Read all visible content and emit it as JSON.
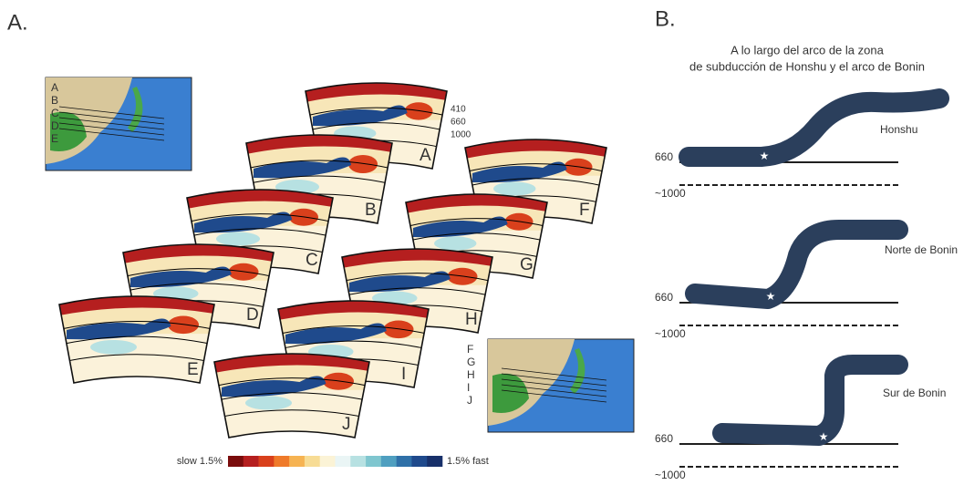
{
  "panel_a": {
    "label": "A.",
    "sections": [
      "A",
      "B",
      "C",
      "D",
      "E",
      "F",
      "G",
      "H",
      "I",
      "J"
    ],
    "depth_labels": [
      "410",
      "660",
      "1000"
    ],
    "map_top": {
      "labels": [
        "A",
        "B",
        "C",
        "D",
        "E"
      ]
    },
    "map_bottom": {
      "labels": [
        "F",
        "G",
        "H",
        "I",
        "J"
      ]
    },
    "colorbar": {
      "left": "slow 1.5%",
      "right": "1.5% fast",
      "colors": [
        "#7a0c0c",
        "#b51f1f",
        "#d9401c",
        "#ef7a2a",
        "#f6b352",
        "#f7dc95",
        "#fbf3d6",
        "#eaf5f5",
        "#b7e1e2",
        "#7fc6cf",
        "#4f9fc0",
        "#2f70a8",
        "#1f4a8c",
        "#18306a"
      ]
    }
  },
  "panel_b": {
    "label": "B.",
    "title": [
      "A lo largo del arco de la zona",
      "de subducción de Honshu y el arco de Bonin"
    ],
    "profiles": [
      {
        "name": "Honshu",
        "depth_660": "660",
        "depth_1000": "~1000"
      },
      {
        "name": "Norte de Bonin",
        "depth_660": "660",
        "depth_1000": "~1000"
      },
      {
        "name": "Sur de Bonin",
        "depth_660": "660",
        "depth_1000": "~1000"
      }
    ]
  }
}
